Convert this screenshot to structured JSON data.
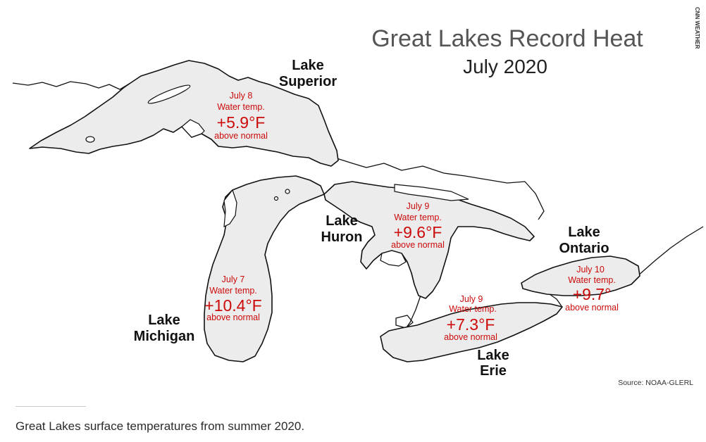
{
  "map": {
    "title": "Great Lakes Record Heat",
    "subtitle": "July 2020",
    "credit": "CNN WEATHER",
    "source": "Source: NOAA-GLERL",
    "lakes": [
      {
        "id": "superior",
        "name_line1": "Lake",
        "name_line2": "Superior",
        "date": "July 8",
        "metric": "Water temp.",
        "value": "+5.9°F",
        "note": "above normal"
      },
      {
        "id": "huron",
        "name_line1": "Lake",
        "name_line2": "Huron",
        "date": "July 9",
        "metric": "Water temp.",
        "value": "+9.6°F",
        "note": "above normal"
      },
      {
        "id": "michigan",
        "name_line1": "Lake",
        "name_line2": "Michigan",
        "date": "July 7",
        "metric": "Water temp.",
        "value": "+10.4°F",
        "note": "above normal"
      },
      {
        "id": "ontario",
        "name_line1": "Lake",
        "name_line2": "Ontario",
        "date": "July 10",
        "metric": "Water temp.",
        "value": "+9.7°",
        "note": "above normal"
      },
      {
        "id": "erie",
        "name_line1": "Lake",
        "name_line2": "Erie",
        "date": "July 9",
        "metric": "Water temp.",
        "value": "+7.3°F",
        "note": "above normal"
      }
    ],
    "colors": {
      "lake_fill": "#ececec",
      "outline": "#111111",
      "highlight": "#cc0a0a",
      "title": "#555555"
    }
  },
  "caption": "Great Lakes surface temperatures from summer 2020."
}
